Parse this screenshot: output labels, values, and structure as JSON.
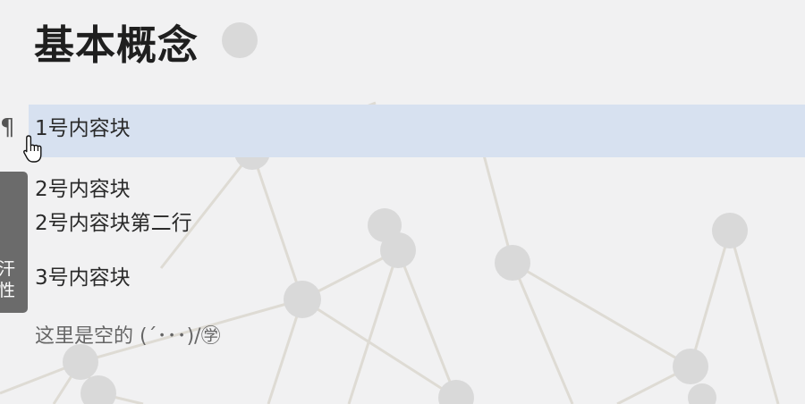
{
  "page": {
    "title": "基本概念"
  },
  "blocks": [
    {
      "text": "1号内容块"
    },
    {
      "lines": [
        "2号内容块",
        "2号内容块第二行"
      ]
    },
    {
      "text": "3号内容块"
    }
  ],
  "paragraph_marker": "¶",
  "side_tab": {
    "line1": "汗",
    "line2": "性"
  },
  "empty_hint": "这里是空的 (´･･･)/㊫",
  "colors": {
    "background": "#f1f1f2",
    "highlight": "#d7e1f0",
    "side_tab": "#6b6b6b"
  }
}
